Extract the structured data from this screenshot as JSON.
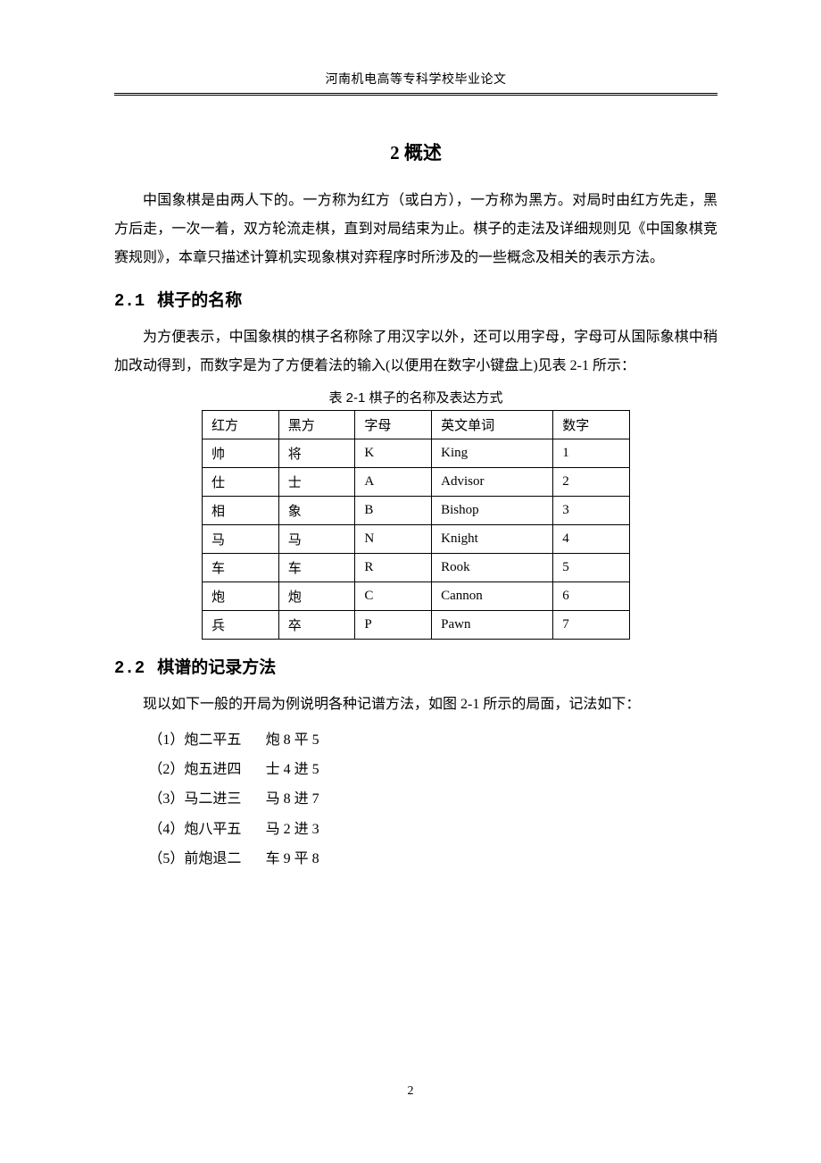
{
  "header": {
    "text": "河南机电高等专科学校毕业论文"
  },
  "chapter": {
    "title": "2 概述"
  },
  "intro_para": "中国象棋是由两人下的。一方称为红方（或白方），一方称为黑方。对局时由红方先走，黑方后走，一次一着，双方轮流走棋，直到对局结束为止。棋子的走法及详细规则见《中国象棋竞赛规则》，本章只描述计算机实现象棋对弈程序时所涉及的一些概念及相关的表示方法。",
  "section_2_1": {
    "number": "2.1",
    "title": "棋子的名称",
    "para": "为方便表示，中国象棋的棋子名称除了用汉字以外，还可以用字母，字母可从国际象棋中稍加改动得到，而数字是为了方便着法的输入(以便用在数字小键盘上)见表 2-1 所示："
  },
  "table": {
    "caption": "表 2-1 棋子的名称及表达方式",
    "columns": [
      "红方",
      "黑方",
      "字母",
      "英文单词",
      "数字"
    ],
    "rows": [
      [
        "帅",
        "将",
        "K",
        "King",
        "1"
      ],
      [
        "仕",
        "士",
        "A",
        "Advisor",
        "2"
      ],
      [
        "相",
        "象",
        "B",
        "Bishop",
        "3"
      ],
      [
        "马",
        "马",
        "N",
        "Knight",
        "4"
      ],
      [
        "车",
        "车",
        "R",
        "Rook",
        "5"
      ],
      [
        "炮",
        "炮",
        "C",
        "Cannon",
        "6"
      ],
      [
        "兵",
        "卒",
        "P",
        "Pawn",
        "7"
      ]
    ],
    "col_widths": [
      "80px",
      "70px",
      "70px",
      "120px",
      "110px"
    ]
  },
  "section_2_2": {
    "number": "2.2",
    "title": "棋谱的记录方法",
    "para": "现以如下一般的开局为例说明各种记谱方法，如图 2-1 所示的局面，记法如下：",
    "moves": [
      {
        "n": "（1）",
        "red": "炮二平五",
        "black": "炮 8 平 5"
      },
      {
        "n": "（2）",
        "red": "炮五进四",
        "black": "士 4 进 5"
      },
      {
        "n": "（3）",
        "red": "马二进三",
        "black": "马 8 进 7"
      },
      {
        "n": "（4）",
        "red": "炮八平五",
        "black": "马 2 进 3"
      },
      {
        "n": "（5）",
        "red": "前炮退二",
        "black": "车 9 平 8"
      }
    ]
  },
  "page_number": "2",
  "style": {
    "text_color": "#000000",
    "background_color": "#ffffff",
    "body_fontsize": 16,
    "header_fontsize": 14,
    "chapter_fontsize": 21,
    "section_fontsize": 19,
    "table_fontsize": 15,
    "line_height": 2.0,
    "border_color": "#000000"
  }
}
